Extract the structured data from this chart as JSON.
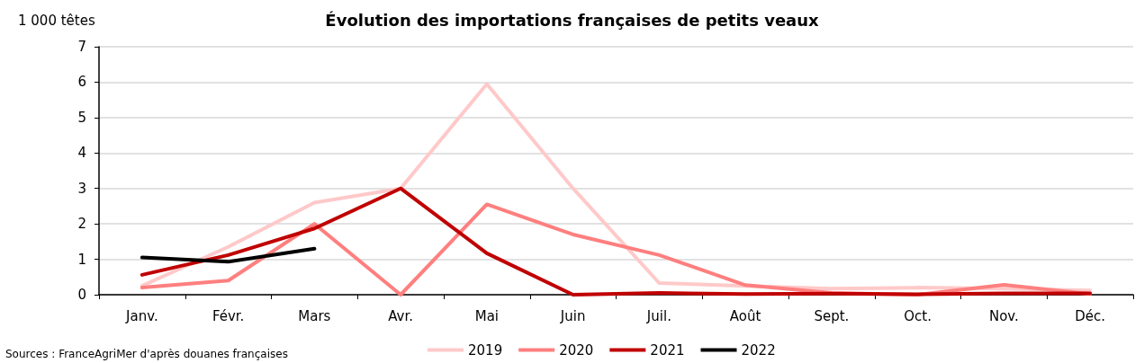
{
  "chart_data": {
    "type": "line",
    "title": "Évolution des importations françaises de petits veaux",
    "ylabel": "1 000 têtes",
    "categories": [
      "Janv.",
      "Févr.",
      "Mars",
      "Avr.",
      "Mai",
      "Juin",
      "Juil.",
      "Août",
      "Sept.",
      "Oct.",
      "Nov.",
      "Déc."
    ],
    "series": [
      {
        "name": "2019",
        "color": "#ffc9c9",
        "values": [
          0.25,
          1.35,
          2.6,
          3.0,
          5.95,
          3.0,
          0.33,
          0.25,
          0.17,
          0.2,
          0.17,
          0.12
        ]
      },
      {
        "name": "2020",
        "color": "#ff7f7f",
        "values": [
          0.2,
          0.4,
          2.0,
          0,
          2.55,
          1.7,
          1.12,
          0.27,
          0.05,
          0,
          0.28,
          0.02
        ]
      },
      {
        "name": "2021",
        "color": "#c00000",
        "values": [
          0.56,
          1.12,
          1.87,
          3.0,
          1.17,
          0,
          0.05,
          0.02,
          0.03,
          0.01,
          0.04,
          0.04
        ]
      },
      {
        "name": "2022",
        "color": "#000000",
        "values": [
          1.05,
          0.93,
          1.3,
          null,
          null,
          null,
          null,
          null,
          null,
          null,
          null,
          null
        ]
      }
    ],
    "ylim": [
      0,
      7
    ],
    "yticks": [
      0,
      1,
      2,
      3,
      4,
      5,
      6,
      7
    ],
    "grid": "y",
    "legend": "bottom",
    "marker": "none",
    "line_style": "solid",
    "annotations": [
      "Sources : FranceAgriMer d'après douanes françaises"
    ]
  }
}
